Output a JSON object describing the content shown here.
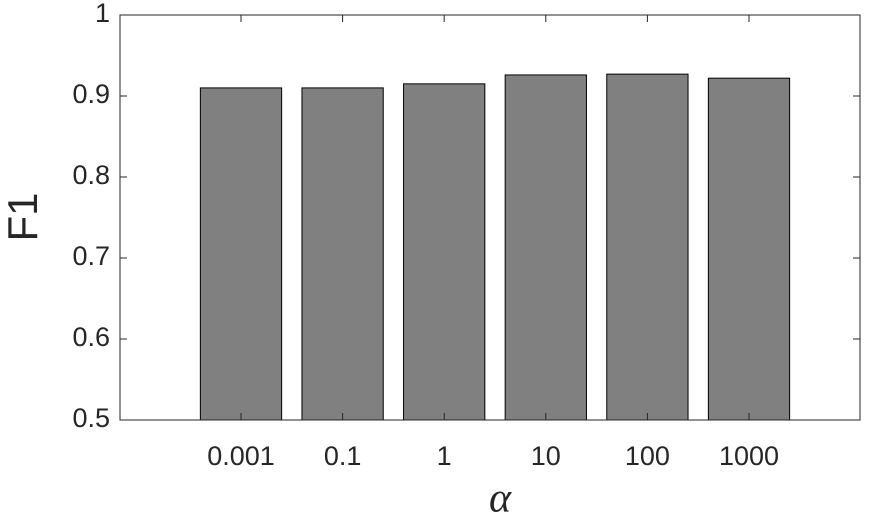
{
  "chart_data": {
    "type": "bar",
    "x_label": "α",
    "y_label": "F1",
    "categories": [
      "0.001",
      "0.1",
      "1",
      "10",
      "100",
      "1000"
    ],
    "values": [
      0.91,
      0.91,
      0.915,
      0.926,
      0.927,
      0.922
    ],
    "color": "#808080",
    "ylim": [
      0.5,
      1
    ],
    "yticks": [
      0.5,
      0.6,
      0.7,
      0.8,
      0.9,
      1
    ],
    "grid": false
  }
}
